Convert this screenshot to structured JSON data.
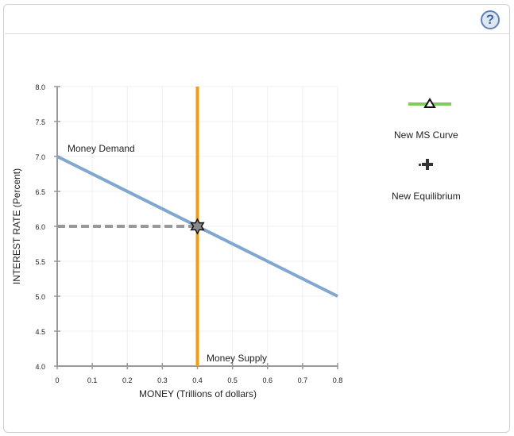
{
  "header": {
    "help_label": "?"
  },
  "chart_data": {
    "type": "line",
    "title": "",
    "xlabel": "MONEY (Trillions of dollars)",
    "ylabel": "INTEREST RATE (Percent)",
    "xlim": [
      0,
      0.8
    ],
    "ylim": [
      4.0,
      8.0
    ],
    "x_ticks": [
      "0",
      "0.1",
      "0.2",
      "0.3",
      "0.4",
      "0.5",
      "0.6",
      "0.7",
      "0.8"
    ],
    "y_ticks": [
      "4.0",
      "4.5",
      "5.0",
      "5.5",
      "6.0",
      "6.5",
      "7.0",
      "7.5",
      "8.0"
    ],
    "grid": true,
    "series": [
      {
        "name": "Money Demand",
        "color": "#7fa7d0",
        "points": [
          [
            0,
            7.0
          ],
          [
            0.8,
            5.0
          ]
        ]
      },
      {
        "name": "Money Supply",
        "color": "#f39c12",
        "points": [
          [
            0.4,
            4.0
          ],
          [
            0.4,
            8.0
          ]
        ]
      },
      {
        "name": "Equilibrium guide",
        "color": "#999999",
        "style": "dashed",
        "points": [
          [
            0,
            6.0
          ],
          [
            0.4,
            6.0
          ]
        ]
      }
    ],
    "annotations": [
      {
        "text": "Money Demand",
        "x": 0.03,
        "y": 7.1
      },
      {
        "text": "Money Supply",
        "x": 0.42,
        "y": 4.1
      },
      {
        "text": "Equilibrium (star)",
        "x": 0.4,
        "y": 6.0
      }
    ],
    "legend_position": "right"
  },
  "labels": {
    "money_demand": "Money Demand",
    "money_supply": "Money Supply"
  },
  "legend": {
    "items": [
      {
        "label": "New MS Curve",
        "icon": "green-line-triangle-icon",
        "color": "#7dce5a"
      },
      {
        "label": "New Equilibrium",
        "icon": "plus-marker-icon",
        "color": "#222222"
      }
    ]
  }
}
